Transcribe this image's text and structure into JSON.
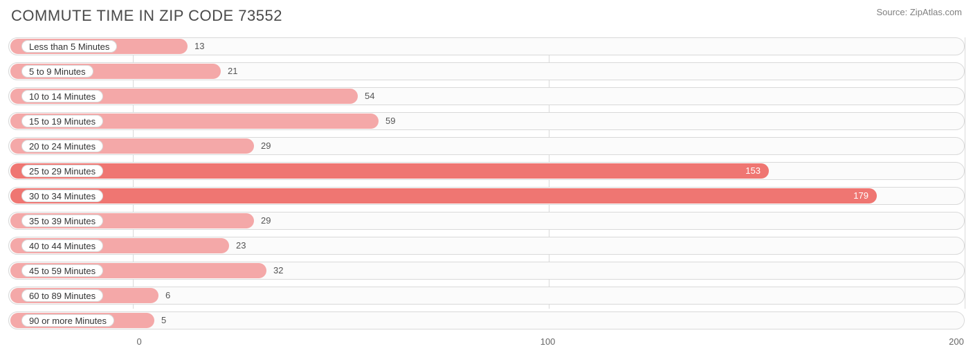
{
  "header": {
    "title": "COMMUTE TIME IN ZIP CODE 73552",
    "source": "Source: ZipAtlas.com"
  },
  "chart": {
    "type": "bar-horizontal",
    "x_min": -30,
    "x_max": 200,
    "x_ticks": [
      0,
      100,
      200
    ],
    "bar_origin_x": -30,
    "bar_color_light": "#f4a8a8",
    "bar_color_dark": "#ef7672",
    "track_border_color": "#d9d9d9",
    "track_bg": "#fbfbfb",
    "label_pill_bg": "#ffffff",
    "label_pill_border": "#d9d9d9",
    "value_text_outside": "#555555",
    "value_text_inside": "#ffffff",
    "grid_color": "#d9d9d9",
    "categories": [
      {
        "label": "Less than 5 Minutes",
        "value": 13,
        "shade": "light",
        "value_pos": "outside"
      },
      {
        "label": "5 to 9 Minutes",
        "value": 21,
        "shade": "light",
        "value_pos": "outside"
      },
      {
        "label": "10 to 14 Minutes",
        "value": 54,
        "shade": "light",
        "value_pos": "outside"
      },
      {
        "label": "15 to 19 Minutes",
        "value": 59,
        "shade": "light",
        "value_pos": "outside"
      },
      {
        "label": "20 to 24 Minutes",
        "value": 29,
        "shade": "light",
        "value_pos": "outside"
      },
      {
        "label": "25 to 29 Minutes",
        "value": 153,
        "shade": "dark",
        "value_pos": "inside"
      },
      {
        "label": "30 to 34 Minutes",
        "value": 179,
        "shade": "dark",
        "value_pos": "inside"
      },
      {
        "label": "35 to 39 Minutes",
        "value": 29,
        "shade": "light",
        "value_pos": "outside"
      },
      {
        "label": "40 to 44 Minutes",
        "value": 23,
        "shade": "light",
        "value_pos": "outside"
      },
      {
        "label": "45 to 59 Minutes",
        "value": 32,
        "shade": "light",
        "value_pos": "outside"
      },
      {
        "label": "60 to 89 Minutes",
        "value": 6,
        "shade": "light",
        "value_pos": "outside"
      },
      {
        "label": "90 or more Minutes",
        "value": 5,
        "shade": "light",
        "value_pos": "outside"
      }
    ]
  }
}
